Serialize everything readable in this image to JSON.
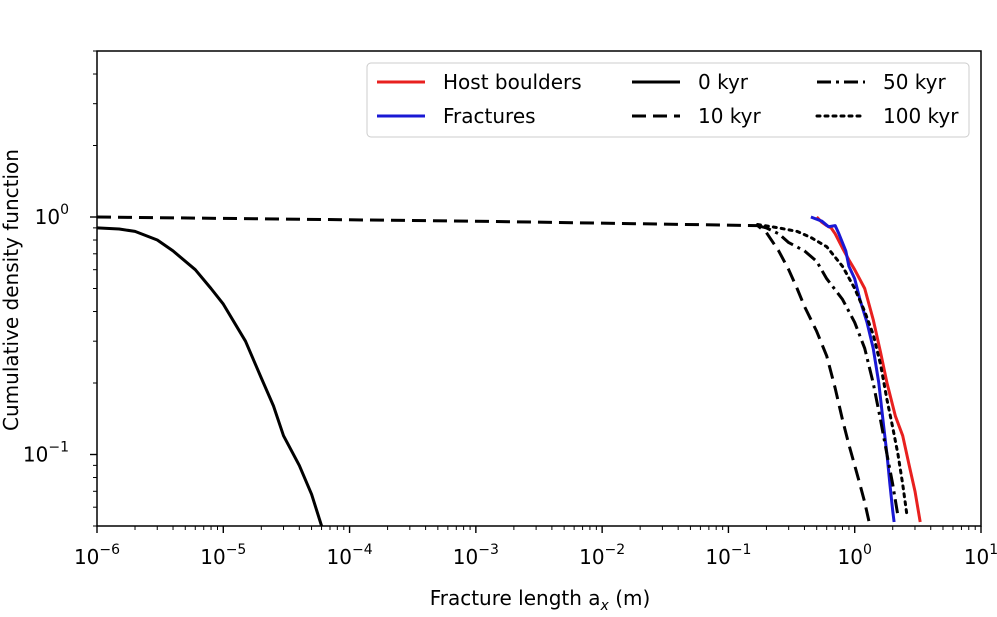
{
  "chart_data": {
    "type": "line",
    "xscale": "log",
    "yscale": "log",
    "xlim": [
      1e-06,
      10
    ],
    "ylim": [
      0.05,
      5
    ],
    "xlabel": "Fracture length a",
    "xlabel_sub": "x",
    "xlabel_unit": " (m)",
    "ylabel": "Cumulative density function",
    "x_ticks": [
      {
        "value": 1e-06,
        "base": "10",
        "exp": "−6"
      },
      {
        "value": 1e-05,
        "base": "10",
        "exp": "−5"
      },
      {
        "value": 0.0001,
        "base": "10",
        "exp": "−4"
      },
      {
        "value": 0.001,
        "base": "10",
        "exp": "−3"
      },
      {
        "value": 0.01,
        "base": "10",
        "exp": "−2"
      },
      {
        "value": 0.1,
        "base": "10",
        "exp": "−1"
      },
      {
        "value": 1,
        "base": "10",
        "exp": "0"
      },
      {
        "value": 10,
        "base": "10",
        "exp": "1"
      }
    ],
    "y_ticks": [
      {
        "value": 1,
        "base": "10",
        "exp": "0"
      },
      {
        "value": 0.1,
        "base": "10",
        "exp": "−1"
      }
    ],
    "legend": {
      "placement": "top-right",
      "entries": [
        "Host boulders",
        "Fractures",
        "0 kyr",
        "10 kyr",
        "50 kyr",
        "100 kyr"
      ]
    },
    "series": [
      {
        "name": "Host boulders",
        "color": "#e8201f",
        "style": "solid",
        "points": [
          [
            0.5,
            1.0
          ],
          [
            0.55,
            0.95
          ],
          [
            0.6,
            0.92
          ],
          [
            0.65,
            0.9
          ],
          [
            0.7,
            0.85
          ],
          [
            0.8,
            0.74
          ],
          [
            0.9,
            0.66
          ],
          [
            1.0,
            0.6
          ],
          [
            1.2,
            0.5
          ],
          [
            1.4,
            0.37
          ],
          [
            1.6,
            0.27
          ],
          [
            1.8,
            0.2
          ],
          [
            2.1,
            0.145
          ],
          [
            2.4,
            0.12
          ],
          [
            2.7,
            0.09
          ],
          [
            3.0,
            0.07
          ],
          [
            3.3,
            0.052
          ]
        ]
      },
      {
        "name": "Fractures",
        "color": "#1a18d4",
        "style": "solid",
        "points": [
          [
            0.45,
            1.0
          ],
          [
            0.55,
            0.96
          ],
          [
            0.62,
            0.91
          ],
          [
            0.7,
            0.92
          ],
          [
            0.75,
            0.85
          ],
          [
            0.85,
            0.72
          ],
          [
            0.9,
            0.62
          ],
          [
            1.0,
            0.55
          ],
          [
            1.1,
            0.45
          ],
          [
            1.25,
            0.36
          ],
          [
            1.4,
            0.28
          ],
          [
            1.55,
            0.2
          ],
          [
            1.7,
            0.13
          ],
          [
            1.8,
            0.1
          ],
          [
            1.9,
            0.075
          ],
          [
            2.0,
            0.058
          ],
          [
            2.05,
            0.052
          ]
        ]
      },
      {
        "name": "0 kyr",
        "color": "#000000",
        "style": "solid",
        "points": [
          [
            1e-06,
            0.9
          ],
          [
            1.5e-06,
            0.89
          ],
          [
            2e-06,
            0.87
          ],
          [
            3e-06,
            0.8
          ],
          [
            4e-06,
            0.72
          ],
          [
            6e-06,
            0.6
          ],
          [
            8e-06,
            0.5
          ],
          [
            1e-05,
            0.43
          ],
          [
            1.5e-05,
            0.3
          ],
          [
            2e-05,
            0.21
          ],
          [
            2.5e-05,
            0.16
          ],
          [
            3e-05,
            0.12
          ],
          [
            4e-05,
            0.09
          ],
          [
            5e-05,
            0.068
          ],
          [
            6e-05,
            0.05
          ]
        ]
      },
      {
        "name": "10 kyr",
        "color": "#000000",
        "style": "dashed",
        "points": [
          [
            1e-06,
            1.0
          ],
          [
            0.001,
            0.96
          ],
          [
            0.17,
            0.92
          ],
          [
            0.2,
            0.86
          ],
          [
            0.25,
            0.72
          ],
          [
            0.3,
            0.6
          ],
          [
            0.35,
            0.5
          ],
          [
            0.4,
            0.42
          ],
          [
            0.5,
            0.33
          ],
          [
            0.6,
            0.26
          ],
          [
            0.7,
            0.19
          ],
          [
            0.8,
            0.14
          ],
          [
            0.9,
            0.11
          ],
          [
            1.0,
            0.09
          ],
          [
            1.1,
            0.075
          ],
          [
            1.2,
            0.063
          ],
          [
            1.3,
            0.052
          ]
        ]
      },
      {
        "name": "50 kyr",
        "color": "#000000",
        "style": "dashdot",
        "points": [
          [
            0.17,
            0.92
          ],
          [
            0.2,
            0.9
          ],
          [
            0.25,
            0.85
          ],
          [
            0.3,
            0.78
          ],
          [
            0.4,
            0.72
          ],
          [
            0.5,
            0.65
          ],
          [
            0.6,
            0.55
          ],
          [
            0.8,
            0.45
          ],
          [
            1.0,
            0.36
          ],
          [
            1.2,
            0.28
          ],
          [
            1.4,
            0.2
          ],
          [
            1.6,
            0.14
          ],
          [
            1.8,
            0.1
          ],
          [
            2.0,
            0.075
          ],
          [
            2.2,
            0.055
          ]
        ]
      },
      {
        "name": "100 kyr",
        "color": "#000000",
        "style": "dotted",
        "points": [
          [
            0.17,
            0.93
          ],
          [
            0.25,
            0.9
          ],
          [
            0.35,
            0.87
          ],
          [
            0.45,
            0.82
          ],
          [
            0.6,
            0.75
          ],
          [
            0.8,
            0.62
          ],
          [
            1.0,
            0.5
          ],
          [
            1.2,
            0.4
          ],
          [
            1.4,
            0.32
          ],
          [
            1.6,
            0.24
          ],
          [
            1.8,
            0.17
          ],
          [
            2.0,
            0.13
          ],
          [
            2.2,
            0.1
          ],
          [
            2.4,
            0.075
          ],
          [
            2.6,
            0.055
          ]
        ]
      }
    ]
  }
}
